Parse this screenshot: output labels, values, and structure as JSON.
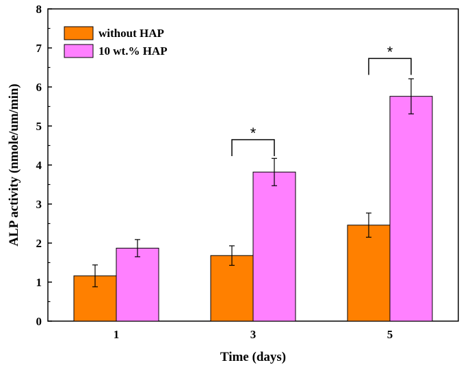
{
  "chart_data": {
    "type": "bar",
    "title": "",
    "xlabel": "Time (days)",
    "ylabel": "ALP activity (nmole/um/min)",
    "ylim": [
      0,
      8
    ],
    "yticks": [
      "0",
      "1",
      "2",
      "3",
      "4",
      "5",
      "6",
      "7",
      "8"
    ],
    "categories": [
      "1",
      "3",
      "5"
    ],
    "series": [
      {
        "name": "without HAP",
        "color": "#ff8000",
        "values": [
          1.16,
          1.68,
          2.46
        ],
        "errors": [
          0.28,
          0.25,
          0.31
        ]
      },
      {
        "name": "10 wt.% HAP",
        "color": "#ff80ff",
        "values": [
          1.87,
          3.82,
          5.76
        ],
        "errors": [
          0.22,
          0.35,
          0.45
        ]
      }
    ],
    "annotations": [
      {
        "text": "*",
        "category": "3",
        "bracket_y": 4.65
      },
      {
        "text": "*",
        "category": "5",
        "bracket_y": 6.73
      }
    ],
    "legend_position": "top-left",
    "grid": false
  }
}
